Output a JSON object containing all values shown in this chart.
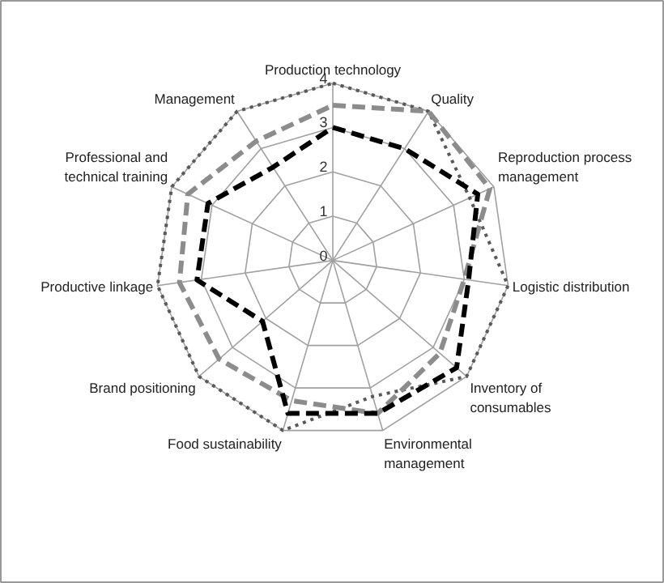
{
  "chart_data": {
    "type": "radar",
    "categories": [
      "Production technology",
      "Quality",
      "Reproduction process management",
      "Logistic distribution",
      "Inventory of consumables",
      "Environmental management",
      "Food sustainability",
      "Brand positioning",
      "Productive linkage",
      "Professional and technical training",
      "Management"
    ],
    "series": [
      {
        "color": "#595959",
        "line_style": "dotted",
        "values": [
          4,
          4,
          3.4,
          4,
          4,
          3.2,
          4,
          4,
          4,
          4,
          4
        ]
      },
      {
        "color": "#8c8c8c",
        "line_style": "dashed",
        "values": [
          3.5,
          4,
          3.9,
          3.0,
          3.2,
          3.6,
          3.3,
          3.4,
          3.5,
          3.6,
          3.2
        ]
      },
      {
        "color": "#000000",
        "line_style": "dashed",
        "values": [
          3,
          3,
          3.6,
          3.1,
          3.7,
          3.6,
          3.6,
          2.1,
          3.1,
          3.1,
          2.5
        ]
      }
    ],
    "ylim": [
      0,
      4
    ],
    "yticks": [
      0,
      1,
      2,
      3,
      4
    ],
    "grid": true
  }
}
